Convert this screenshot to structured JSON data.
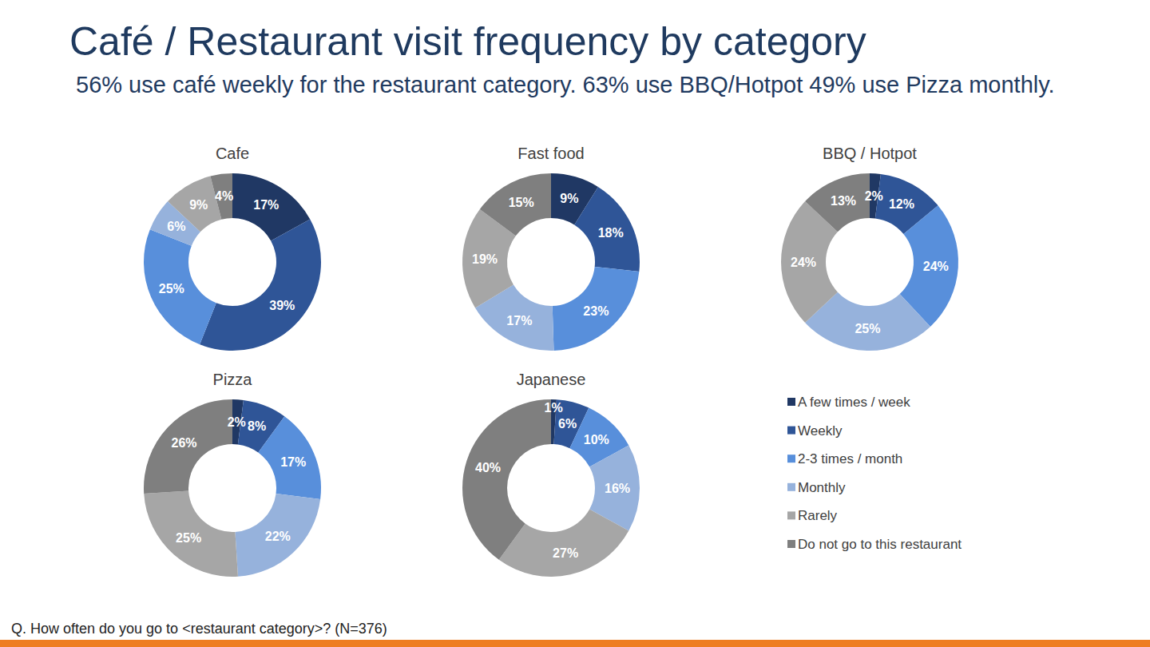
{
  "title": "Café / Restaurant visit frequency by category",
  "subtitle": "56% use café weekly for the restaurant category. 63% use BBQ/Hotpot 49% use Pizza monthly.",
  "note": "Q. How often do you go to <restaurant category>? (N=376)",
  "chart_data": [
    {
      "type": "donut",
      "title": "Cafe",
      "categories": [
        "A few times / week",
        "Weekly",
        "2-3 times / month",
        "Monthly",
        "Rarely",
        "Do not go to this restaurant"
      ],
      "values": [
        17,
        39,
        25,
        6,
        9,
        4
      ],
      "value_labels": [
        "17%",
        "39%",
        "25%",
        "6%",
        "9%",
        "4%"
      ],
      "colors": [
        "#203864",
        "#2f5597",
        "#588fdb",
        "#96b2dc",
        "#a6a6a6",
        "#7f7f7f"
      ],
      "data_labels": true
    },
    {
      "type": "donut",
      "title": "Fast food",
      "categories": [
        "A few times / week",
        "Weekly",
        "2-3 times / month",
        "Monthly",
        "Rarely",
        "Do not go to this restaurant"
      ],
      "values": [
        9,
        18,
        23,
        17,
        19,
        15
      ],
      "value_labels": [
        "9%",
        "18%",
        "23%",
        "17%",
        "19%",
        "15%"
      ],
      "colors": [
        "#203864",
        "#2f5597",
        "#588fdb",
        "#96b2dc",
        "#a6a6a6",
        "#7f7f7f"
      ],
      "data_labels": true
    },
    {
      "type": "donut",
      "title": "BBQ / Hotpot",
      "categories": [
        "A few times / week",
        "Weekly",
        "2-3 times / month",
        "Monthly",
        "Rarely",
        "Do not go to this restaurant"
      ],
      "values": [
        2,
        12,
        24,
        25,
        24,
        13
      ],
      "value_labels": [
        "2%",
        "12%",
        "24%",
        "25%",
        "24%",
        "13%"
      ],
      "colors": [
        "#203864",
        "#2f5597",
        "#588fdb",
        "#96b2dc",
        "#a6a6a6",
        "#7f7f7f"
      ],
      "data_labels": true
    },
    {
      "type": "donut",
      "title": "Pizza",
      "categories": [
        "A few times / week",
        "Weekly",
        "2-3 times / month",
        "Monthly",
        "Rarely",
        "Do not go to this restaurant"
      ],
      "values": [
        2,
        8,
        17,
        22,
        25,
        26
      ],
      "value_labels": [
        "2%",
        "8%",
        "17%",
        "22%",
        "25%",
        "26%"
      ],
      "colors": [
        "#203864",
        "#2f5597",
        "#588fdb",
        "#96b2dc",
        "#a6a6a6",
        "#7f7f7f"
      ],
      "data_labels": true
    },
    {
      "type": "donut",
      "title": "Japanese",
      "categories": [
        "A few times / week",
        "Weekly",
        "2-3 times / month",
        "Monthly",
        "Rarely",
        "Do not go to this restaurant"
      ],
      "values": [
        1,
        6,
        10,
        16,
        27,
        40
      ],
      "value_labels": [
        "1%",
        "6%",
        "10%",
        "16%",
        "27%",
        "40%"
      ],
      "colors": [
        "#203864",
        "#2f5597",
        "#588fdb",
        "#96b2dc",
        "#a6a6a6",
        "#7f7f7f"
      ],
      "data_labels": true
    }
  ]
}
